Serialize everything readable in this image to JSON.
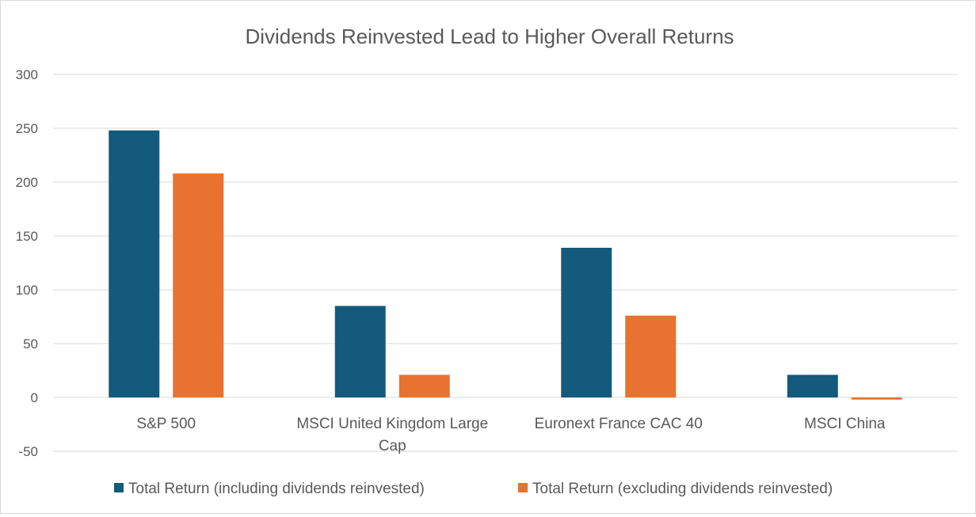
{
  "chart_data": {
    "type": "bar",
    "title": "Dividends Reinvested Lead to Higher Overall Returns",
    "categories": [
      [
        "S&P 500"
      ],
      [
        "MSCI United Kingdom Large",
        "Cap"
      ],
      [
        "Euronext France CAC 40"
      ],
      [
        "MSCI China"
      ]
    ],
    "series": [
      {
        "name": "Total Return (including dividends reinvested)",
        "color": "#145a7c",
        "values": [
          248,
          85,
          139,
          21
        ]
      },
      {
        "name": "Total Return (excluding dividends reinvested)",
        "color": "#e87230",
        "values": [
          208,
          21,
          76,
          -2
        ]
      }
    ],
    "y_ticks": [
      300,
      250,
      200,
      150,
      100,
      50,
      0,
      -50
    ],
    "ylim": [
      -50,
      300
    ],
    "xlabel": "",
    "ylabel": "",
    "grid": true,
    "legend_position": "bottom"
  }
}
